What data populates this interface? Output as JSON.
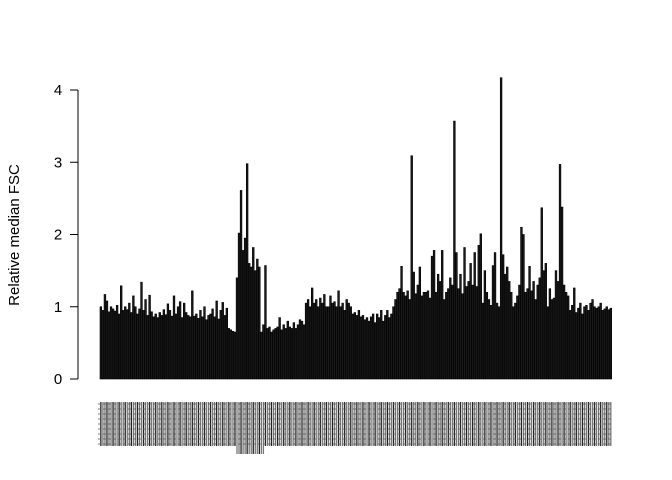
{
  "chart_data": {
    "type": "bar",
    "title": "",
    "xlabel": "",
    "ylabel": "Relative median FSC",
    "ylim": [
      0,
      4.2
    ],
    "yticks": [
      0,
      1,
      2,
      3,
      4
    ],
    "grid": false,
    "legend": "none",
    "bar_color": "#1a1a1a",
    "values": [
      1.0,
      0.95,
      1.17,
      1.08,
      0.93,
      1.0,
      0.97,
      0.94,
      1.02,
      0.9,
      1.29,
      0.95,
      1.0,
      0.96,
      1.05,
      0.92,
      1.15,
      1.0,
      0.9,
      0.97,
      1.34,
      0.95,
      1.1,
      0.88,
      1.16,
      0.93,
      0.86,
      0.9,
      0.85,
      0.92,
      0.88,
      0.96,
      0.89,
      1.04,
      0.95,
      0.87,
      1.15,
      0.9,
      1.0,
      1.07,
      0.85,
      1.05,
      0.92,
      0.88,
      0.86,
      1.22,
      0.87,
      0.9,
      0.84,
      0.95,
      0.86,
      1.0,
      0.82,
      0.88,
      0.9,
      0.97,
      0.86,
      1.08,
      0.83,
      0.95,
      1.06,
      0.88,
      0.98,
      0.7,
      0.68,
      0.66,
      0.65,
      1.4,
      2.02,
      2.61,
      1.78,
      1.95,
      2.98,
      1.6,
      1.55,
      1.82,
      1.5,
      1.66,
      1.55,
      0.65,
      0.75,
      1.57,
      0.7,
      0.72,
      0.65,
      0.68,
      0.7,
      0.72,
      0.85,
      0.68,
      0.75,
      0.7,
      0.8,
      0.72,
      0.7,
      0.78,
      0.7,
      0.75,
      0.82,
      0.8,
      0.75,
      1.05,
      1.1,
      1.0,
      1.26,
      1.05,
      1.1,
      1.0,
      1.12,
      1.05,
      1.17,
      1.0,
      1.0,
      1.15,
      1.05,
      1.07,
      1.0,
      1.22,
      1.0,
      1.05,
      0.95,
      1.1,
      1.05,
      1.0,
      0.9,
      0.92,
      0.88,
      0.95,
      0.86,
      0.88,
      0.82,
      0.85,
      0.8,
      0.86,
      0.9,
      0.78,
      0.9,
      0.85,
      0.95,
      0.8,
      0.88,
      0.95,
      0.85,
      0.9,
      1.0,
      1.1,
      1.2,
      1.25,
      1.56,
      1.2,
      1.15,
      1.22,
      1.1,
      3.09,
      1.48,
      1.18,
      1.3,
      1.55,
      1.15,
      1.2,
      1.2,
      1.22,
      1.12,
      1.7,
      1.78,
      1.2,
      1.45,
      1.35,
      1.78,
      1.1,
      1.2,
      1.25,
      1.4,
      1.3,
      3.57,
      1.75,
      1.25,
      1.45,
      1.18,
      1.82,
      1.28,
      1.35,
      1.6,
      1.3,
      1.75,
      1.28,
      1.85,
      2.01,
      1.05,
      1.5,
      1.2,
      1.1,
      1.02,
      1.57,
      1.75,
      1.05,
      1.0,
      4.17,
      1.72,
      1.45,
      1.55,
      1.35,
      1.2,
      1.0,
      1.05,
      1.15,
      1.3,
      2.1,
      2.0,
      1.2,
      1.25,
      1.56,
      1.22,
      1.35,
      1.1,
      1.3,
      1.4,
      2.37,
      1.5,
      1.6,
      1.0,
      1.25,
      1.1,
      1.12,
      1.5,
      1.35,
      2.97,
      2.38,
      1.3,
      1.2,
      1.15,
      0.95,
      1.02,
      1.26,
      0.92,
      0.98,
      1.05,
      0.9,
      1.0,
      1.02,
      0.95,
      1.05,
      1.1,
      1.0,
      0.98,
      1.0,
      1.05,
      0.95,
      0.97,
      1.0,
      0.96,
      0.98
    ]
  }
}
